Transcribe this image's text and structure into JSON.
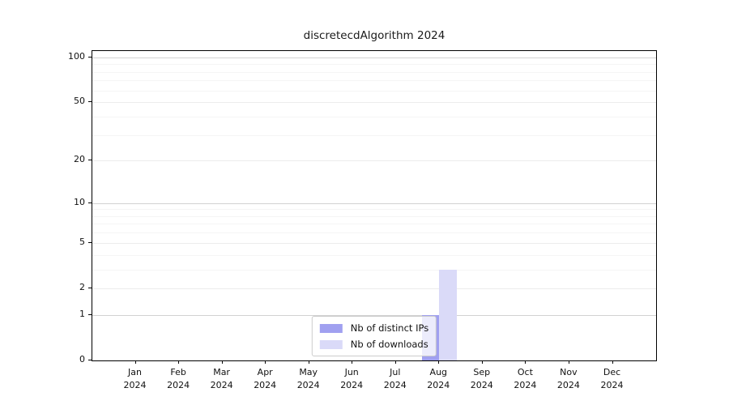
{
  "chart_data": {
    "type": "bar",
    "title": "discretecdAlgorithm 2024",
    "categories": [
      "Jan 2024",
      "Feb 2024",
      "Mar 2024",
      "Apr 2024",
      "May 2024",
      "Jun 2024",
      "Jul 2024",
      "Aug 2024",
      "Sep 2024",
      "Oct 2024",
      "Nov 2024",
      "Dec 2024"
    ],
    "series": [
      {
        "name": "Nb of distinct IPs",
        "color": "#a0a0f0",
        "values": [
          0,
          0,
          0,
          0,
          0,
          0,
          0,
          1,
          0,
          0,
          0,
          0
        ]
      },
      {
        "name": "Nb of downloads",
        "color": "#dadaf8",
        "values": [
          0,
          0,
          0,
          0,
          0,
          0,
          0,
          3,
          0,
          0,
          0,
          0
        ]
      }
    ],
    "xlabel": "",
    "ylabel": "",
    "yscale": "log1p",
    "ylim": [
      0,
      110
    ],
    "yticks": [
      0,
      1,
      2,
      5,
      10,
      20,
      50,
      100
    ],
    "y_major_gridlines": [
      1,
      10,
      100
    ],
    "y_mid_gridlines": [
      2,
      5,
      20,
      50
    ],
    "y_minor_gridlines": [
      3,
      4,
      6,
      7,
      8,
      9,
      30,
      40,
      60,
      70,
      80,
      90
    ],
    "grid": "horizontal major+minor",
    "legend_position": "lower center"
  },
  "colors": {
    "distinct_ips_bar": "#a0a0f0",
    "downloads_bar": "#dadaf8",
    "axis": "#000000",
    "grid_major": "#d2d2d2",
    "grid_minor": "#f5f5f5",
    "background": "#ffffff"
  }
}
